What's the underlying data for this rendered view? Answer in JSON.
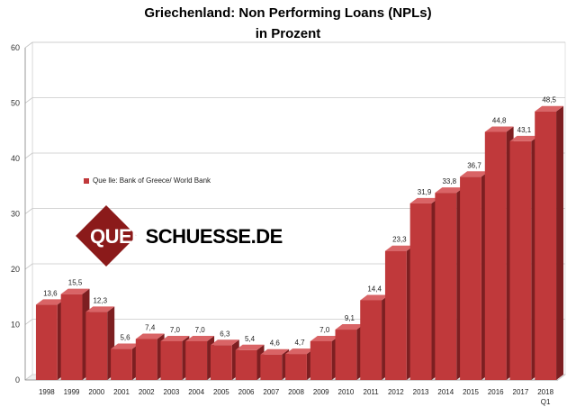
{
  "chart_data": {
    "type": "bar",
    "title_line1": "Griechenland: Non Performing  Loans (NPLs)",
    "title_line2": "in Prozent",
    "categories": [
      "1998",
      "1999",
      "2000",
      "2001",
      "2002",
      "2003",
      "2004",
      "2005",
      "2006",
      "2007",
      "2008",
      "2009",
      "2010",
      "2011",
      "2012",
      "2013",
      "2014",
      "2015",
      "2016",
      "2017",
      "2018"
    ],
    "category_sublabels": {
      "2018": "Q1"
    },
    "values": [
      13.6,
      15.5,
      12.3,
      5.6,
      7.4,
      7.0,
      7.0,
      6.3,
      5.4,
      4.6,
      4.7,
      7.0,
      9.1,
      14.4,
      23.3,
      31.9,
      33.8,
      36.7,
      44.8,
      43.1,
      48.5
    ],
    "value_labels": [
      "13,6",
      "15,5",
      "12,3",
      "5,6",
      "7,4",
      "7,0",
      "7,0",
      "6,3",
      "5,4",
      "4,6",
      "4,7",
      "7,0",
      "9,1",
      "14,4",
      "23,3",
      "31,9",
      "33,8",
      "36,7",
      "44,8",
      "43,1",
      "48,5"
    ],
    "yticks": [
      0,
      10,
      20,
      30,
      40,
      50,
      60
    ],
    "ylim": [
      0,
      60
    ],
    "grid": true,
    "style": "3d",
    "bar_color": "#c0393b",
    "legend": {
      "label": "Que lle: Bank of Greece/ World Bank",
      "position": "left-middle"
    }
  },
  "watermark": {
    "part1": "QUER",
    "part2": "SCHUESSE.DE"
  }
}
